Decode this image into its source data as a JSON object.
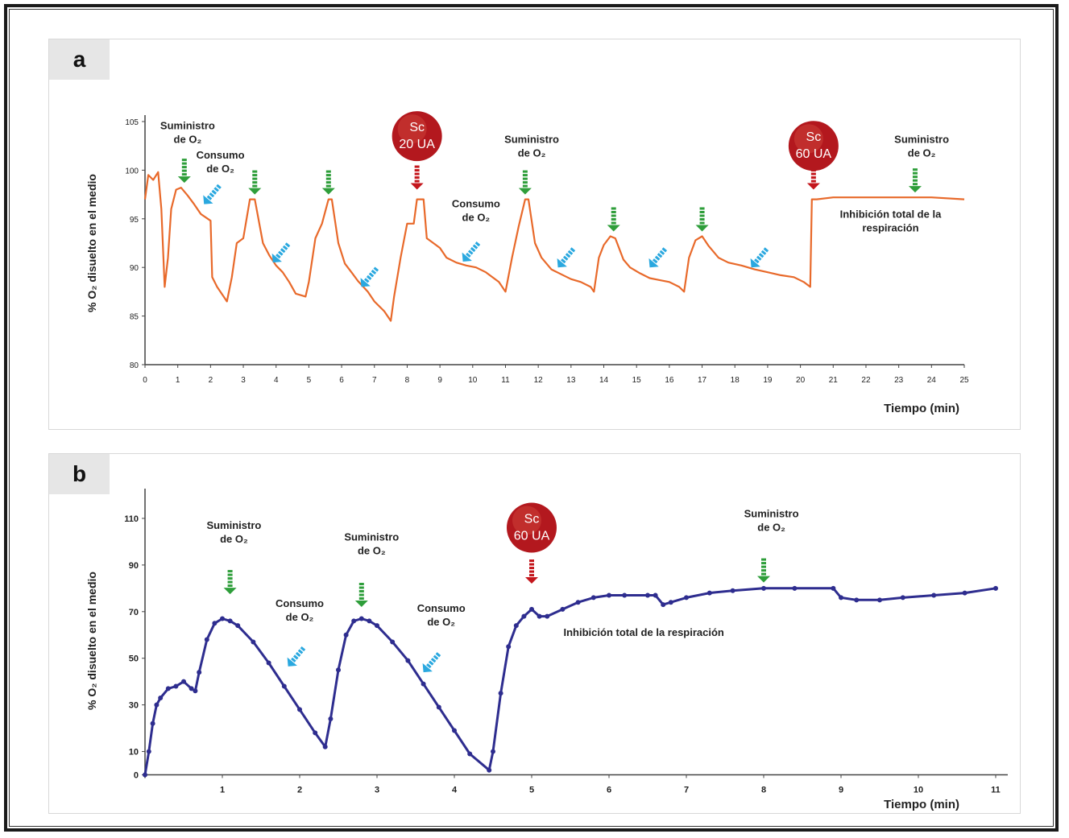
{
  "charts": [
    {
      "panel_label": "a",
      "chart_data": {
        "type": "line",
        "xlabel": "Tiempo (min)",
        "ylabel": "% O₂ disuelto en el medio",
        "xlim": [
          0,
          25
        ],
        "ylim": [
          80,
          105
        ],
        "xticks": [
          0,
          1,
          2,
          3,
          4,
          5,
          6,
          7,
          8,
          9,
          10,
          11,
          12,
          13,
          14,
          15,
          16,
          17,
          18,
          19,
          20,
          21,
          22,
          23,
          24,
          25
        ],
        "yticks": [
          80,
          85,
          90,
          95,
          100,
          105
        ],
        "grid": false,
        "color": "#e8692a",
        "series": [
          {
            "x": [
              0,
              0.1,
              0.25,
              0.4,
              0.5,
              0.6,
              0.7,
              0.8,
              0.95,
              1.1,
              1.3,
              1.5,
              1.7,
              2.0,
              2.05,
              2.2,
              2.4,
              2.5,
              2.65,
              2.8,
              3.0,
              3.2,
              3.35,
              3.6,
              3.8,
              4.0,
              4.2,
              4.4,
              4.6,
              4.9,
              5.0,
              5.2,
              5.4,
              5.6,
              5.7,
              5.9,
              6.1,
              6.3,
              6.5,
              6.8,
              7.0,
              7.3,
              7.5,
              7.6,
              7.8,
              8.0,
              8.2,
              8.3,
              8.5,
              8.6,
              8.8,
              9.0,
              9.2,
              9.5,
              9.8,
              10.1,
              10.4,
              10.8,
              11.0,
              11.2,
              11.4,
              11.6,
              11.7,
              11.9,
              12.1,
              12.4,
              12.7,
              13.0,
              13.3,
              13.6,
              13.7,
              13.85,
              14.0,
              14.2,
              14.35,
              14.6,
              14.8,
              15.1,
              15.4,
              15.7,
              16.0,
              16.3,
              16.45,
              16.6,
              16.8,
              17.0,
              17.2,
              17.5,
              17.8,
              18.2,
              18.6,
              19.0,
              19.4,
              19.8,
              20.1,
              20.3,
              20.35,
              20.5,
              21.0,
              22.0,
              23.0,
              24.0,
              25.0
            ],
            "y": [
              97,
              99.5,
              99,
              99.8,
              96,
              88,
              91,
              96,
              98,
              98.2,
              97.4,
              96.5,
              95.5,
              94.8,
              89,
              88,
              87,
              86.5,
              89,
              92.5,
              93,
              97,
              97,
              92.5,
              91.2,
              90.2,
              89.5,
              88.5,
              87.3,
              87,
              88.5,
              93,
              94.5,
              97,
              97,
              92.5,
              90.4,
              89.5,
              88.6,
              87.5,
              86.5,
              85.5,
              84.5,
              87,
              91,
              94.5,
              94.5,
              97,
              97,
              93,
              92.5,
              92,
              91,
              90.5,
              90.2,
              90,
              89.5,
              88.5,
              87.5,
              91,
              94.2,
              97,
              97,
              92.5,
              91,
              89.8,
              89.3,
              88.8,
              88.5,
              88,
              87.5,
              91,
              92.3,
              93.2,
              93,
              90.8,
              90,
              89.4,
              88.9,
              88.7,
              88.5,
              88,
              87.5,
              91,
              92.8,
              93.2,
              92.2,
              91,
              90.5,
              90.2,
              89.8,
              89.5,
              89.2,
              89,
              88.5,
              88,
              97,
              97,
              97.2,
              97.2,
              97.2,
              97.2,
              97
            ]
          }
        ],
        "annotations": [
          {
            "text_lines": [
              "Suministro",
              "de O₂"
            ],
            "x": 1.3,
            "y": 104.2,
            "arrow": "supply",
            "arrow_x": 1.2,
            "arrow_y": 98.7
          },
          {
            "text_lines": [
              "Consumo",
              "de O₂"
            ],
            "x": 2.3,
            "y": 101.2,
            "arrow": "consume",
            "arrow_x": 1.8,
            "arrow_y": 96.5
          },
          {
            "text_lines": [],
            "arrow": "supply",
            "arrow_x": 3.35,
            "arrow_y": 97.5
          },
          {
            "text_lines": [],
            "arrow": "consume",
            "arrow_x": 3.9,
            "arrow_y": 90.5
          },
          {
            "text_lines": [],
            "arrow": "supply",
            "arrow_x": 5.6,
            "arrow_y": 97.5
          },
          {
            "text_lines": [],
            "arrow": "consume",
            "arrow_x": 6.6,
            "arrow_y": 88.0
          },
          {
            "text_lines": [],
            "arrow": "inhibitor",
            "arrow_x": 8.3,
            "arrow_y": 98.0
          },
          {
            "text_lines": [
              "Consumo",
              "de O₂"
            ],
            "x": 10.1,
            "y": 96.2,
            "arrow": "consume",
            "arrow_x": 9.7,
            "arrow_y": 90.6
          },
          {
            "text_lines": [
              "Suministro",
              "de O₂"
            ],
            "x": 11.8,
            "y": 102.8,
            "arrow": "supply",
            "arrow_x": 11.6,
            "arrow_y": 97.5
          },
          {
            "text_lines": [],
            "arrow": "consume",
            "arrow_x": 12.6,
            "arrow_y": 90.0
          },
          {
            "text_lines": [],
            "arrow": "supply",
            "arrow_x": 14.3,
            "arrow_y": 93.7
          },
          {
            "text_lines": [],
            "arrow": "consume",
            "arrow_x": 15.4,
            "arrow_y": 90.0
          },
          {
            "text_lines": [],
            "arrow": "supply",
            "arrow_x": 17.0,
            "arrow_y": 93.7
          },
          {
            "text_lines": [],
            "arrow": "consume",
            "arrow_x": 18.5,
            "arrow_y": 90.0
          },
          {
            "text_lines": [],
            "arrow": "inhibitor",
            "arrow_x": 20.4,
            "arrow_y": 98.0
          },
          {
            "text_lines": [
              "Suministro",
              "de O₂"
            ],
            "x": 23.7,
            "y": 102.8,
            "arrow": "supply",
            "arrow_x": 23.5,
            "arrow_y": 97.7
          },
          {
            "text_lines": [
              "Inhibición total de la",
              "respiración"
            ],
            "x": 22.75,
            "y": 95.1
          }
        ],
        "badges": [
          {
            "lines": [
              "Sc",
              "20 UA"
            ],
            "x": 8.3,
            "y": 103.5
          },
          {
            "lines": [
              "Sc",
              "60 UA"
            ],
            "x": 20.4,
            "y": 102.5
          }
        ]
      }
    },
    {
      "panel_label": "b",
      "chart_data": {
        "type": "line",
        "xlabel": "Tiempo (min)",
        "ylabel": "% O₂ disuelto en el medio",
        "xlim": [
          0,
          11
        ],
        "ylim": [
          -5,
          120
        ],
        "xticks": [
          1,
          2,
          3,
          4,
          5,
          6,
          7,
          8,
          9,
          10,
          11
        ],
        "yticks": [
          0,
          10,
          30,
          50,
          70,
          90,
          110
        ],
        "grid": false,
        "color": "#2e2d8f",
        "series": [
          {
            "x": [
              0,
              0.05,
              0.1,
              0.15,
              0.2,
              0.3,
              0.4,
              0.5,
              0.6,
              0.65,
              0.7,
              0.8,
              0.9,
              1.0,
              1.1,
              1.2,
              1.4,
              1.6,
              1.8,
              2.0,
              2.2,
              2.33,
              2.4,
              2.5,
              2.6,
              2.7,
              2.8,
              2.9,
              3.0,
              3.2,
              3.4,
              3.6,
              3.8,
              4.0,
              4.2,
              4.45,
              4.5,
              4.6,
              4.7,
              4.8,
              4.9,
              5.0,
              5.1,
              5.2,
              5.4,
              5.6,
              5.8,
              6.0,
              6.2,
              6.5,
              6.6,
              6.7,
              6.8,
              7.0,
              7.3,
              7.6,
              8.0,
              8.4,
              8.9,
              9.0,
              9.2,
              9.5,
              9.8,
              10.2,
              10.6,
              11.0
            ],
            "y": [
              0,
              10,
              22,
              30,
              33,
              37,
              38,
              40,
              37,
              36,
              44,
              58,
              65,
              67,
              66,
              64,
              57,
              48,
              38,
              28,
              18,
              12,
              24,
              45,
              60,
              66,
              67,
              66,
              64,
              57,
              49,
              39,
              29,
              19,
              9,
              2,
              10,
              35,
              55,
              64,
              68,
              71,
              68,
              68,
              71,
              74,
              76,
              77,
              77,
              77,
              77,
              73,
              74,
              76,
              78,
              79,
              80,
              80,
              80,
              76,
              75,
              75,
              76,
              77,
              78,
              80
            ]
          }
        ],
        "annotations": [
          {
            "text_lines": [
              "Suministro",
              "de O₂"
            ],
            "x": 1.15,
            "y": 105.5,
            "arrow": "supply",
            "arrow_x": 1.1,
            "arrow_y": 77.5
          },
          {
            "text_lines": [
              "Consumo",
              "de O₂"
            ],
            "x": 2.0,
            "y": 72.0,
            "arrow": "consume",
            "arrow_x": 1.85,
            "arrow_y": 46.5
          },
          {
            "text_lines": [
              "Suministro",
              "de O₂"
            ],
            "x": 2.93,
            "y": 100.5,
            "arrow": "supply",
            "arrow_x": 2.8,
            "arrow_y": 72.0
          },
          {
            "text_lines": [
              "Consumo",
              "de O₂"
            ],
            "x": 3.83,
            "y": 70.0,
            "arrow": "consume",
            "arrow_x": 3.6,
            "arrow_y": 44.0
          },
          {
            "text_lines": [],
            "arrow": "inhibitor",
            "arrow_x": 5.0,
            "arrow_y": 82.0
          },
          {
            "text_lines": [
              "Inhibición total de la respiración"
            ],
            "x": 6.45,
            "y": 59.5
          },
          {
            "text_lines": [
              "Suministro",
              "de O₂"
            ],
            "x": 8.1,
            "y": 110.5,
            "arrow": "supply",
            "arrow_x": 8.0,
            "arrow_y": 82.5
          }
        ],
        "badges": [
          {
            "lines": [
              "Sc",
              "60 UA"
            ],
            "x": 5.0,
            "y": 106.0
          }
        ]
      }
    }
  ]
}
